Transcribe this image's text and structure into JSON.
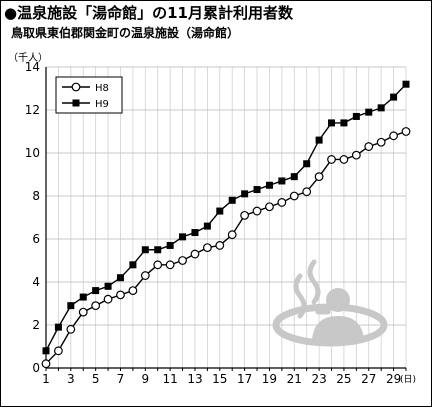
{
  "header": {
    "title": "●温泉施設「湯命館」の11月累計利用者数",
    "subtitle": "鳥取県東伯郡関金町の温泉施設（湯命館）"
  },
  "chart_data": {
    "type": "line",
    "title": "●温泉施設「湯命館」の11月累計利用者数",
    "subtitle": "鳥取県東伯郡関金町の温泉施設（湯命館）",
    "ylabel": "（千人）",
    "xlabel": "(日)",
    "xlim": [
      1,
      30
    ],
    "ylim": [
      0,
      14
    ],
    "yticks": [
      0,
      2,
      4,
      6,
      8,
      10,
      12,
      14
    ],
    "xticks": [
      1,
      3,
      5,
      7,
      9,
      11,
      13,
      15,
      17,
      19,
      21,
      23,
      25,
      27,
      29
    ],
    "grid": true,
    "legend_position": "top-left",
    "x": [
      1,
      2,
      3,
      4,
      5,
      6,
      7,
      8,
      9,
      10,
      11,
      12,
      13,
      14,
      15,
      16,
      17,
      18,
      19,
      20,
      21,
      22,
      23,
      24,
      25,
      26,
      27,
      28,
      29,
      30
    ],
    "series": [
      {
        "name": "H8",
        "marker": "open-circle",
        "values": [
          0.2,
          0.8,
          1.8,
          2.6,
          2.9,
          3.2,
          3.4,
          3.6,
          4.3,
          4.8,
          4.8,
          5.0,
          5.3,
          5.6,
          5.7,
          6.2,
          7.1,
          7.3,
          7.5,
          7.7,
          8.0,
          8.2,
          8.9,
          9.7,
          9.7,
          9.9,
          10.3,
          10.5,
          10.8,
          11.0
        ]
      },
      {
        "name": "H9",
        "marker": "filled-square",
        "values": [
          0.8,
          1.9,
          2.9,
          3.3,
          3.6,
          3.8,
          4.2,
          4.8,
          5.5,
          5.5,
          5.7,
          6.1,
          6.3,
          6.6,
          7.3,
          7.8,
          8.1,
          8.3,
          8.5,
          8.7,
          8.9,
          9.5,
          10.6,
          11.4,
          11.4,
          11.7,
          11.9,
          12.1,
          12.6,
          13.2
        ]
      }
    ],
    "colors": {
      "line": "#000000",
      "plot_bg": "#ffffff",
      "illustration": "#c8c8c8"
    }
  }
}
